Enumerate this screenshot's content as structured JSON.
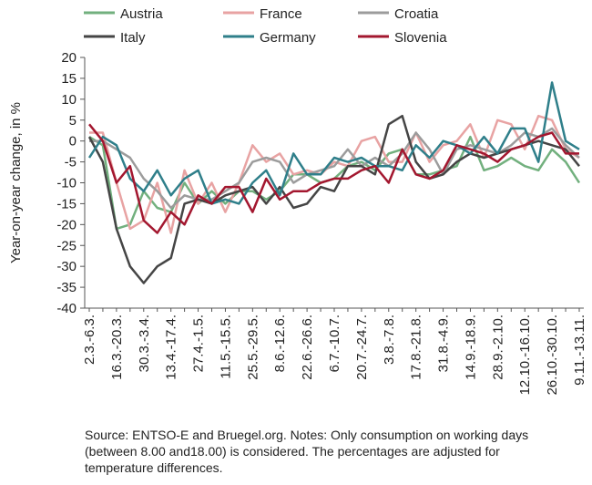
{
  "chart_data": {
    "type": "line",
    "y_label": "Year-on-year change, in %",
    "source": "Source: ENTSO-E and Bruegel.org. Notes: Only consumption on working days (between 8.00 and18.00) is considered. The percentages are adjusted for temperature differences.",
    "categories": [
      "2.3.-6.3.",
      null,
      "16.3.-20.3.",
      null,
      "30.3.-3.4.",
      null,
      "13.4.-17.4.",
      null,
      "27.4.-1.5.",
      null,
      "11.5.-15.5.",
      null,
      "25.5.-29.5.",
      null,
      "8.6.-12.6.",
      null,
      "22.6.-26.6.",
      null,
      "6.7.-10.7.",
      null,
      "20.7.-24.7.",
      null,
      "3.8.-7.8.",
      null,
      "17.8.-21.8.",
      null,
      "31.8.-4.9.",
      null,
      "14.9.-18.9.",
      null,
      "28.9.-2.10.",
      null,
      "12.10.-16.10.",
      null,
      "26.10.-30.10.",
      null,
      "9.11.-13.11."
    ],
    "series": [
      {
        "name": "Austria",
        "color": "#72b07e",
        "values": [
          1,
          -1,
          -21,
          -20,
          -12,
          -16,
          -17,
          -10,
          -15,
          -12,
          -15,
          -12,
          -12,
          -14,
          -12,
          -8,
          -8,
          -10,
          -9,
          -6,
          -5,
          -7,
          -3,
          -2,
          -8,
          -8,
          -7,
          -6,
          1,
          -7,
          -6,
          -4,
          -6,
          -7,
          -2,
          -5,
          -10
        ]
      },
      {
        "name": "France",
        "color": "#e8a3a3",
        "values": [
          2,
          2,
          -10,
          -21,
          -19,
          -10,
          -22,
          -7,
          -15,
          -10,
          -17,
          -10,
          -1,
          -5,
          -3,
          -8,
          -7,
          -8,
          -5,
          -6,
          0,
          1,
          -5,
          -5,
          2,
          -5,
          -1,
          0,
          4,
          -4,
          5,
          4,
          -2,
          6,
          5,
          -2,
          -4
        ]
      },
      {
        "name": "Croatia",
        "color": "#9c9c9c",
        "values": [
          0,
          0,
          -2,
          -4,
          -9,
          -12,
          -16,
          -13,
          -14,
          -14,
          -12,
          -10,
          -5,
          -4,
          -5,
          -10,
          -8,
          -7,
          -6,
          -2,
          -6,
          -4,
          -6,
          -3,
          2,
          -2,
          -8,
          -2,
          -1,
          -2,
          -3,
          -1,
          2,
          1,
          3,
          -1,
          -4
        ]
      },
      {
        "name": "Italy",
        "color": "#454545",
        "values": [
          1,
          -5,
          -21,
          -30,
          -34,
          -30,
          -28,
          -15,
          -14,
          -15,
          -13,
          -12,
          -11,
          -15,
          -11,
          -16,
          -15,
          -11,
          -12,
          -6,
          -6,
          -8,
          4,
          6,
          -5,
          -9,
          -8,
          -5,
          -3,
          -4,
          -3,
          -2,
          -1,
          0,
          -1,
          -2,
          -6
        ]
      },
      {
        "name": "Germany",
        "color": "#2f7f8a",
        "values": [
          -4,
          1,
          -1,
          -9,
          -12,
          -7,
          -13,
          -9,
          -7,
          -15,
          -14,
          -15,
          -10,
          -7,
          -13,
          -3,
          -8,
          -8,
          -4,
          -5,
          -4,
          -6,
          -6,
          -7,
          -1,
          -4,
          0,
          -1,
          -3,
          1,
          -3,
          3,
          3,
          -5,
          14,
          0,
          -2
        ]
      },
      {
        "name": "Slovenia",
        "color": "#a3172f",
        "values": [
          4,
          0,
          -10,
          -6,
          -19,
          -22,
          -17,
          -20,
          -13,
          -15,
          -11,
          -11,
          -17,
          -9,
          -14,
          -12,
          -12,
          -10,
          -9,
          -9,
          -7,
          -6,
          -10,
          -2,
          -8,
          -9,
          -7,
          -1,
          -2,
          -3,
          -5,
          -2,
          -1,
          1,
          2,
          -3,
          -3
        ]
      }
    ],
    "ylim": [
      -40,
      20
    ],
    "yticks": [
      -40,
      -35,
      -30,
      -25,
      -20,
      -15,
      -10,
      -5,
      0,
      5,
      10,
      15,
      20
    ],
    "grid": false
  }
}
